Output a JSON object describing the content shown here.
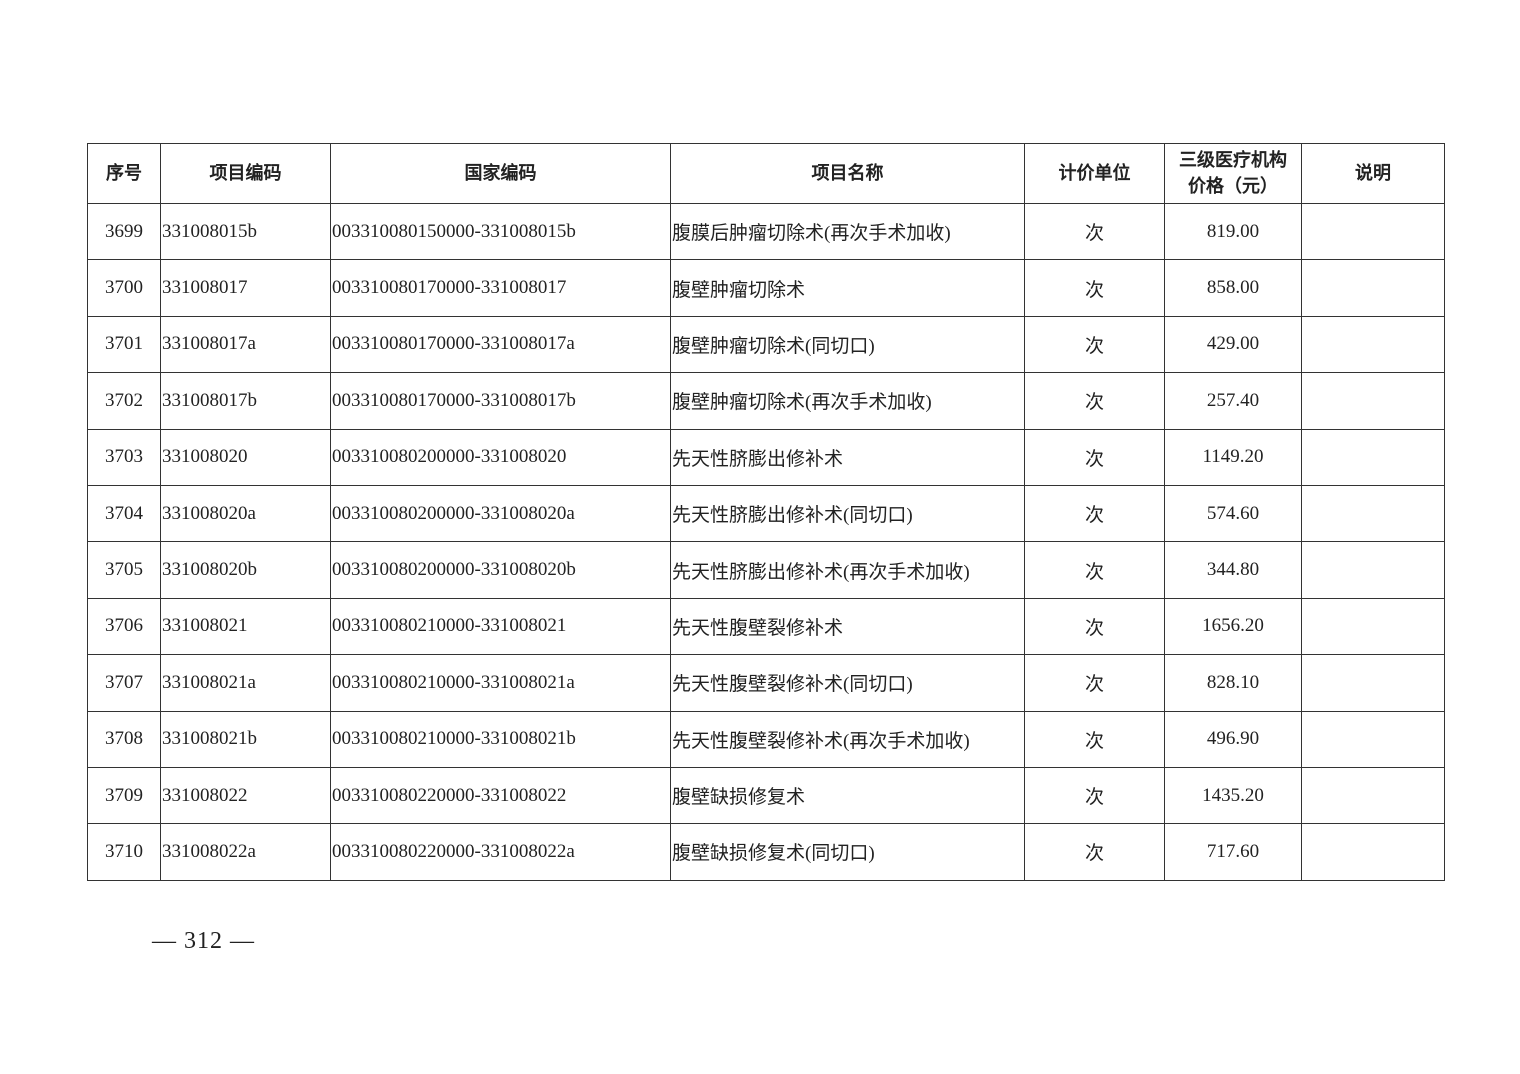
{
  "table": {
    "headers": [
      "序号",
      "项目编码",
      "国家编码",
      "项目名称",
      "计价单位",
      "三级医疗机构价格（元）",
      "说明"
    ],
    "header_price_line1": "三级医疗机构",
    "header_price_line2": "价格（元）",
    "rows": [
      [
        "3699",
        "331008015b",
        "003310080150000-331008015b",
        "腹膜后肿瘤切除术(再次手术加收)",
        "次",
        "819.00",
        ""
      ],
      [
        "3700",
        "331008017",
        "003310080170000-331008017",
        "腹壁肿瘤切除术",
        "次",
        "858.00",
        ""
      ],
      [
        "3701",
        "331008017a",
        "003310080170000-331008017a",
        "腹壁肿瘤切除术(同切口)",
        "次",
        "429.00",
        ""
      ],
      [
        "3702",
        "331008017b",
        "003310080170000-331008017b",
        "腹壁肿瘤切除术(再次手术加收)",
        "次",
        "257.40",
        ""
      ],
      [
        "3703",
        "331008020",
        "003310080200000-331008020",
        "先天性脐膨出修补术",
        "次",
        "1149.20",
        ""
      ],
      [
        "3704",
        "331008020a",
        "003310080200000-331008020a",
        "先天性脐膨出修补术(同切口)",
        "次",
        "574.60",
        ""
      ],
      [
        "3705",
        "331008020b",
        "003310080200000-331008020b",
        "先天性脐膨出修补术(再次手术加收)",
        "次",
        "344.80",
        ""
      ],
      [
        "3706",
        "331008021",
        "003310080210000-331008021",
        "先天性腹壁裂修补术",
        "次",
        "1656.20",
        ""
      ],
      [
        "3707",
        "331008021a",
        "003310080210000-331008021a",
        "先天性腹壁裂修补术(同切口)",
        "次",
        "828.10",
        ""
      ],
      [
        "3708",
        "331008021b",
        "003310080210000-331008021b",
        "先天性腹壁裂修补术(再次手术加收)",
        "次",
        "496.90",
        ""
      ],
      [
        "3709",
        "331008022",
        "003310080220000-331008022",
        "腹壁缺损修复术",
        "次",
        "1435.20",
        ""
      ],
      [
        "3710",
        "331008022a",
        "003310080220000-331008022a",
        "腹壁缺损修复术(同切口)",
        "次",
        "717.60",
        ""
      ]
    ]
  },
  "footer": {
    "page_number": "— 312 —"
  }
}
